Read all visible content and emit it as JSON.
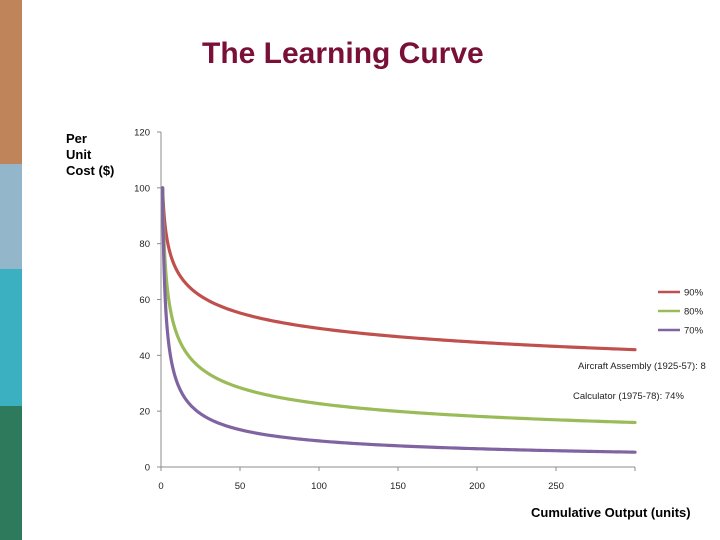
{
  "slide": {
    "title": "The Learning Curve",
    "title_color": "#7a1038",
    "sidebar_colors": [
      "#c0845a",
      "#93b6ca",
      "#3bb0c0",
      "#2e7a5c"
    ]
  },
  "chart_data": {
    "type": "line",
    "title": "The Learning Curve",
    "ylabel": [
      "Per",
      "Unit",
      "Cost ($)"
    ],
    "xlabel": "Cumulative Output (units)",
    "xlim": [
      0,
      300
    ],
    "ylim": [
      0,
      120
    ],
    "x_ticks": [
      0,
      50,
      100,
      150,
      200,
      250
    ],
    "y_ticks": [
      0,
      20,
      40,
      60,
      80,
      100,
      120
    ],
    "grid": false,
    "legend_position": "right",
    "series": [
      {
        "name": "90%",
        "color": "#c0504d",
        "learning_rate": 0.9,
        "x": [
          1,
          2,
          3,
          5,
          10,
          20,
          30,
          50,
          75,
          100,
          150,
          200,
          250,
          300
        ],
        "y": [
          100,
          90,
          84.6,
          78.4,
          70.5,
          63.4,
          59.6,
          55.2,
          51.8,
          49.6,
          46.6,
          44.6,
          43.1,
          41.9
        ]
      },
      {
        "name": "80%",
        "color": "#9bbb59",
        "learning_rate": 0.8,
        "x": [
          1,
          2,
          3,
          5,
          10,
          20,
          30,
          50,
          75,
          100,
          150,
          200,
          250,
          300
        ],
        "y": [
          100,
          80,
          70.2,
          59.6,
          47.7,
          38.1,
          33.5,
          28.4,
          24.9,
          22.7,
          20,
          18.2,
          16.9,
          15.9
        ]
      },
      {
        "name": "70%",
        "color": "#8064a2",
        "learning_rate": 0.7,
        "x": [
          1,
          2,
          3,
          5,
          10,
          20,
          30,
          50,
          75,
          100,
          150,
          200,
          250,
          300
        ],
        "y": [
          100,
          70,
          56.8,
          43.7,
          30.6,
          21.4,
          17.4,
          13.4,
          10.9,
          9.4,
          7.6,
          6.6,
          5.8,
          5.3
        ]
      }
    ],
    "annotations": [
      "Aircraft Assembly (1925-57): 8",
      "Calculator (1975-78): 74%"
    ]
  }
}
